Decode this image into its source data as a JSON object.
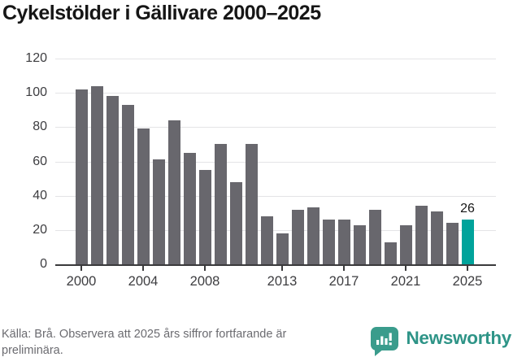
{
  "title": "Cykelstölder i Gällivare 2000–2025",
  "colors": {
    "bar_default": "#68676d",
    "bar_highlight": "#00a39b",
    "grid": "#e4e4e6",
    "axis": "#3a3a3c",
    "title_text": "#161616",
    "tick_text": "#3d3d40",
    "source_text": "#6b6b70",
    "brand_teal": "#2e9487",
    "logo_bubble": "#3a9c8c"
  },
  "chart_data": {
    "type": "bar",
    "title": "Cykelstölder i Gällivare 2000–2025",
    "x": [
      2000,
      2001,
      2002,
      2003,
      2004,
      2005,
      2006,
      2007,
      2008,
      2009,
      2010,
      2011,
      2012,
      2013,
      2014,
      2015,
      2016,
      2017,
      2018,
      2019,
      2020,
      2021,
      2022,
      2023,
      2024,
      2025
    ],
    "values": [
      102,
      104,
      98,
      93,
      79,
      61,
      84,
      65,
      55,
      70,
      48,
      70,
      28,
      18,
      32,
      33,
      26,
      26,
      23,
      32,
      13,
      23,
      34,
      31,
      24,
      26
    ],
    "highlight_x": 2025,
    "highlight_label": "26",
    "xlabel": "",
    "ylabel": "",
    "ylim": [
      0,
      120
    ],
    "yticks": [
      0,
      20,
      40,
      60,
      80,
      100,
      120
    ],
    "xticks": [
      2000,
      2004,
      2008,
      2013,
      2017,
      2021,
      2025
    ],
    "grid": true,
    "legend": "none"
  },
  "footer": {
    "source": "Källa: Brå. Observera att 2025 års siffror fortfarande är preliminära.",
    "brand_name": "Newsworthy"
  }
}
